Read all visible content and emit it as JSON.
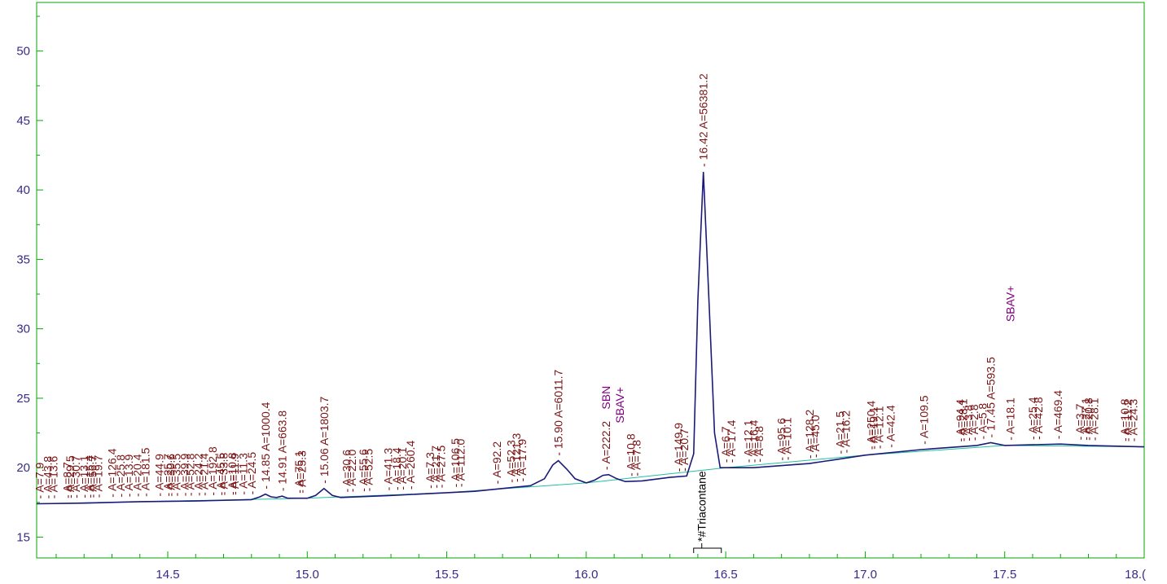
{
  "colors": {
    "frame": "#00aa00",
    "signal": "#1a1a7a",
    "baseline": "#20c0a0",
    "tick_text": "#3a2a8a",
    "peak_text": "#7a1414",
    "flag_text": "#800080",
    "compound_text": "#000000"
  },
  "chart_data": {
    "type": "line",
    "title": "",
    "xlabel": "",
    "ylabel": "",
    "xlim": [
      14.03,
      18.0
    ],
    "ylim": [
      13.5,
      53.5
    ],
    "x_ticks": [
      14.5,
      15.0,
      15.5,
      16.0,
      16.5,
      17.0,
      17.5,
      18.0
    ],
    "x_tick_labels": [
      "14.5",
      "15.0",
      "15.5",
      "16.0",
      "16.5",
      "17.0",
      "17.5",
      "18.("
    ],
    "y_ticks": [
      15,
      20,
      25,
      30,
      35,
      40,
      45,
      50
    ],
    "y_tick_labels": [
      "15",
      "20",
      "25",
      "30",
      "35",
      "40",
      "45",
      "50"
    ],
    "grid": false,
    "series": [
      {
        "values": [
          [
            14.03,
            17.4
          ],
          [
            14.2,
            17.45
          ],
          [
            14.4,
            17.55
          ],
          [
            14.6,
            17.6
          ],
          [
            14.8,
            17.7
          ],
          [
            14.83,
            17.9
          ],
          [
            14.85,
            18.1
          ],
          [
            14.87,
            17.9
          ],
          [
            14.89,
            17.85
          ],
          [
            14.91,
            17.95
          ],
          [
            14.93,
            17.8
          ],
          [
            15.0,
            17.8
          ],
          [
            15.03,
            18.0
          ],
          [
            15.06,
            18.5
          ],
          [
            15.09,
            18.0
          ],
          [
            15.12,
            17.85
          ],
          [
            15.3,
            18.0
          ],
          [
            15.5,
            18.2
          ],
          [
            15.6,
            18.3
          ],
          [
            15.8,
            18.7
          ],
          [
            15.85,
            19.2
          ],
          [
            15.88,
            20.2
          ],
          [
            15.9,
            20.5
          ],
          [
            15.93,
            19.9
          ],
          [
            15.96,
            19.2
          ],
          [
            16.0,
            18.9
          ],
          [
            16.03,
            19.1
          ],
          [
            16.06,
            19.45
          ],
          [
            16.08,
            19.5
          ],
          [
            16.11,
            19.2
          ],
          [
            16.14,
            19.0
          ],
          [
            16.2,
            19.05
          ],
          [
            16.3,
            19.3
          ],
          [
            16.36,
            19.4
          ],
          [
            16.385,
            21.0
          ],
          [
            16.4,
            32.0
          ],
          [
            16.42,
            41.3
          ],
          [
            16.44,
            32.0
          ],
          [
            16.46,
            22.5
          ],
          [
            16.48,
            20.0
          ],
          [
            16.6,
            20.0
          ],
          [
            16.8,
            20.3
          ],
          [
            17.0,
            20.9
          ],
          [
            17.2,
            21.3
          ],
          [
            17.4,
            21.6
          ],
          [
            17.45,
            21.8
          ],
          [
            17.5,
            21.6
          ],
          [
            17.7,
            21.7
          ],
          [
            17.8,
            21.6
          ],
          [
            18.0,
            21.5
          ]
        ]
      },
      {
        "values": [
          [
            14.03,
            17.4
          ],
          [
            15.0,
            17.8
          ],
          [
            15.5,
            18.2
          ],
          [
            16.0,
            18.9
          ],
          [
            16.5,
            20.0
          ],
          [
            17.0,
            20.9
          ],
          [
            17.5,
            21.6
          ],
          [
            18.0,
            21.5
          ]
        ]
      }
    ],
    "peak_labels": [
      {
        "x": 14.04,
        "text": "A=7.9"
      },
      {
        "x": 14.07,
        "text": "A=43.8"
      },
      {
        "x": 14.09,
        "text": "A=13.6"
      },
      {
        "x": 14.14,
        "text": "A=8.7"
      },
      {
        "x": 14.15,
        "text": "A=29.5"
      },
      {
        "x": 14.17,
        "text": "A=30.7"
      },
      {
        "x": 14.2,
        "text": "A=13.1"
      },
      {
        "x": 14.22,
        "text": "A=15.4"
      },
      {
        "x": 14.23,
        "text": "A=56.7"
      },
      {
        "x": 14.25,
        "text": "A=19.7"
      },
      {
        "x": 14.3,
        "text": "A=126.4"
      },
      {
        "x": 14.33,
        "text": "A=25.8"
      },
      {
        "x": 14.36,
        "text": "A=13.9"
      },
      {
        "x": 14.39,
        "text": "A=20.4"
      },
      {
        "x": 14.42,
        "text": "A=181.5"
      },
      {
        "x": 14.47,
        "text": "A=44.9"
      },
      {
        "x": 14.5,
        "text": "A=25.7"
      },
      {
        "x": 14.51,
        "text": "A=30.6"
      },
      {
        "x": 14.53,
        "text": "A=35.5"
      },
      {
        "x": 14.56,
        "text": "A=39.9"
      },
      {
        "x": 14.58,
        "text": "A=52.8"
      },
      {
        "x": 14.61,
        "text": "A=24.2"
      },
      {
        "x": 14.63,
        "text": "A=21.4"
      },
      {
        "x": 14.66,
        "text": "A=192.8"
      },
      {
        "x": 14.69,
        "text": "A=45.5"
      },
      {
        "x": 14.7,
        "text": "A=33.8"
      },
      {
        "x": 14.73,
        "text": "A=10.8"
      },
      {
        "x": 14.74,
        "text": "A=11.9"
      },
      {
        "x": 14.77,
        "text": "A=11.3"
      },
      {
        "x": 14.8,
        "text": "A=24.5"
      },
      {
        "x": 14.85,
        "text": "14.85  A=1000.4"
      },
      {
        "x": 14.91,
        "text": "14.91  A=663.8"
      },
      {
        "x": 14.97,
        "text": "A=75.1"
      },
      {
        "x": 14.98,
        "text": "A=25.3"
      },
      {
        "x": 15.06,
        "text": "15.06  A=1803.7"
      },
      {
        "x": 15.14,
        "text": "A=30.6"
      },
      {
        "x": 15.16,
        "text": "A=22.0"
      },
      {
        "x": 15.2,
        "text": "A=55.6"
      },
      {
        "x": 15.22,
        "text": "A=52.5"
      },
      {
        "x": 15.29,
        "text": "A=41.3"
      },
      {
        "x": 15.32,
        "text": "A=18.4"
      },
      {
        "x": 15.34,
        "text": "A=20.1"
      },
      {
        "x": 15.37,
        "text": "A=260.4"
      },
      {
        "x": 15.44,
        "text": "A=7.3"
      },
      {
        "x": 15.46,
        "text": "A=21.7"
      },
      {
        "x": 15.48,
        "text": "A=27.5"
      },
      {
        "x": 15.53,
        "text": "A=106.5"
      },
      {
        "x": 15.55,
        "text": "A=112.0"
      },
      {
        "x": 15.68,
        "text": "A=92.2"
      },
      {
        "x": 15.73,
        "text": "A=52.3"
      },
      {
        "x": 15.75,
        "text": "A=121.3"
      },
      {
        "x": 15.77,
        "text": "A=17.9"
      },
      {
        "x": 15.9,
        "text": "15.90  A=6011.7"
      },
      {
        "x": 16.07,
        "text": "A=222.2"
      },
      {
        "x": 16.16,
        "text": "A=10.8"
      },
      {
        "x": 16.18,
        "text": "A=7.8"
      },
      {
        "x": 16.33,
        "text": "A=149.9"
      },
      {
        "x": 16.35,
        "text": "A=20.7"
      },
      {
        "x": 16.42,
        "text": "16.42  A=56381.2"
      },
      {
        "x": 16.5,
        "text": "A=6.7"
      },
      {
        "x": 16.52,
        "text": "A=17.4"
      },
      {
        "x": 16.58,
        "text": "A=12.1"
      },
      {
        "x": 16.6,
        "text": "A=16.4"
      },
      {
        "x": 16.62,
        "text": "A=8.8"
      },
      {
        "x": 16.7,
        "text": "A=95.6"
      },
      {
        "x": 16.72,
        "text": "A=10.1"
      },
      {
        "x": 16.8,
        "text": "A=128.2"
      },
      {
        "x": 16.82,
        "text": "A=45.0"
      },
      {
        "x": 16.91,
        "text": "A=21.5"
      },
      {
        "x": 16.93,
        "text": "A=16.2"
      },
      {
        "x": 17.02,
        "text": "A=250.4"
      },
      {
        "x": 17.03,
        "text": "A=19.1"
      },
      {
        "x": 17.05,
        "text": "A=12.1"
      },
      {
        "x": 17.09,
        "text": "A=42.4"
      },
      {
        "x": 17.21,
        "text": "A=109.5"
      },
      {
        "x": 17.34,
        "text": "A=94.4"
      },
      {
        "x": 17.35,
        "text": "A=28.1"
      },
      {
        "x": 17.37,
        "text": "A=3.8"
      },
      {
        "x": 17.39,
        "text": "A=2.8"
      },
      {
        "x": 17.42,
        "text": "A=5.8"
      },
      {
        "x": 17.45,
        "text": "17.45  A=593.5"
      },
      {
        "x": 17.52,
        "text": "A=18.1"
      },
      {
        "x": 17.6,
        "text": "A=25.4"
      },
      {
        "x": 17.62,
        "text": "A=42.8"
      },
      {
        "x": 17.69,
        "text": "A=469.4"
      },
      {
        "x": 17.77,
        "text": "A=3.7"
      },
      {
        "x": 17.79,
        "text": "A=27.1"
      },
      {
        "x": 17.8,
        "text": "A=20.8"
      },
      {
        "x": 17.82,
        "text": "A=28.1"
      },
      {
        "x": 17.93,
        "text": "A=10.8"
      },
      {
        "x": 17.94,
        "text": "A=11.2"
      },
      {
        "x": 17.96,
        "text": "A=24.3"
      }
    ],
    "flag_labels": [
      {
        "x": 16.07,
        "y": 24.2,
        "text": "SBN"
      },
      {
        "x": 16.12,
        "y": 23.2,
        "text": "SBAV+"
      },
      {
        "x": 17.52,
        "y": 30.5,
        "text": "SBAV+"
      }
    ],
    "compound_label": {
      "x": 16.42,
      "text": "*#Triacontane"
    }
  }
}
